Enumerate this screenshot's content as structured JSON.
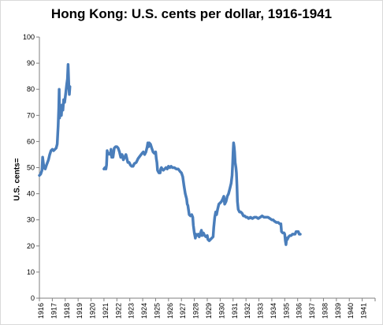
{
  "chart_data": {
    "type": "line",
    "title": "Hong Kong: U.S. cents per dollar, 1916-1941",
    "ylabel": "U.S. cents=",
    "xlabel": "",
    "ylim": [
      0,
      100
    ],
    "yticks": [
      0,
      10,
      20,
      30,
      40,
      50,
      60,
      70,
      80,
      90,
      100
    ],
    "xlim": [
      1916,
      1942
    ],
    "xticks": [
      "1916",
      "1917",
      "1918",
      "1919",
      "1920",
      "1921",
      "1922",
      "1923",
      "1924",
      "1925",
      "1926",
      "1927",
      "1928",
      "1929",
      "1930",
      "1931",
      "1932",
      "1933",
      "1934",
      "1935",
      "1936",
      "1937",
      "1938",
      "1939",
      "1940",
      "1941"
    ],
    "grid": false,
    "line_color": "#4a7ebb",
    "series": [
      {
        "name": "",
        "segments": [
          [
            [
              1916.0,
              47
            ],
            [
              1916.1,
              47.5
            ],
            [
              1916.2,
              49
            ],
            [
              1916.25,
              54
            ],
            [
              1916.35,
              50
            ],
            [
              1916.45,
              49.5
            ],
            [
              1916.55,
              51
            ],
            [
              1916.7,
              53
            ],
            [
              1916.8,
              55
            ],
            [
              1916.9,
              56.5
            ],
            [
              1917.0,
              57
            ],
            [
              1917.1,
              56.5
            ],
            [
              1917.2,
              57
            ],
            [
              1917.3,
              57.5
            ],
            [
              1917.38,
              59
            ],
            [
              1917.45,
              66
            ],
            [
              1917.5,
              73
            ],
            [
              1917.53,
              80
            ],
            [
              1917.56,
              69
            ],
            [
              1917.62,
              72
            ],
            [
              1917.7,
              70
            ],
            [
              1917.75,
              74
            ],
            [
              1917.82,
              72
            ],
            [
              1917.88,
              76
            ],
            [
              1917.95,
              75
            ],
            [
              1918.05,
              79
            ],
            [
              1918.12,
              82
            ],
            [
              1918.17,
              84
            ],
            [
              1918.22,
              89.5
            ],
            [
              1918.28,
              81
            ],
            [
              1918.32,
              78
            ],
            [
              1918.36,
              81
            ]
          ],
          [
            [
              1921.0,
              49.5
            ],
            [
              1921.08,
              50
            ],
            [
              1921.15,
              49.5
            ],
            [
              1921.2,
              51
            ],
            [
              1921.25,
              56.5
            ],
            [
              1921.3,
              55
            ],
            [
              1921.4,
              55.5
            ],
            [
              1921.5,
              55
            ],
            [
              1921.55,
              57
            ],
            [
              1921.6,
              54
            ],
            [
              1921.65,
              55
            ],
            [
              1921.7,
              54
            ],
            [
              1921.8,
              57.5
            ],
            [
              1921.9,
              58
            ],
            [
              1922.0,
              58
            ],
            [
              1922.1,
              57.5
            ],
            [
              1922.2,
              56
            ],
            [
              1922.3,
              54
            ],
            [
              1922.4,
              55
            ],
            [
              1922.5,
              53
            ],
            [
              1922.6,
              54
            ],
            [
              1922.7,
              55
            ],
            [
              1922.75,
              54
            ],
            [
              1922.85,
              52
            ],
            [
              1922.95,
              52
            ],
            [
              1923.05,
              51
            ],
            [
              1923.15,
              50.5
            ],
            [
              1923.25,
              50.5
            ],
            [
              1923.35,
              51.5
            ],
            [
              1923.5,
              52
            ],
            [
              1923.65,
              53.5
            ],
            [
              1923.8,
              54.5
            ],
            [
              1923.95,
              55.5
            ],
            [
              1924.05,
              56
            ],
            [
              1924.15,
              55
            ],
            [
              1924.25,
              56
            ],
            [
              1924.35,
              58
            ],
            [
              1924.4,
              59.5
            ],
            [
              1924.45,
              58
            ],
            [
              1924.5,
              59.5
            ],
            [
              1924.6,
              59
            ],
            [
              1924.7,
              57.5
            ],
            [
              1924.8,
              56
            ],
            [
              1924.9,
              55.5
            ],
            [
              1925.0,
              56
            ],
            [
              1925.05,
              53.5
            ],
            [
              1925.1,
              52
            ],
            [
              1925.15,
              49
            ],
            [
              1925.25,
              48
            ],
            [
              1925.35,
              48
            ],
            [
              1925.4,
              49.5
            ],
            [
              1925.45,
              50
            ],
            [
              1925.5,
              49.5
            ],
            [
              1925.6,
              49
            ],
            [
              1925.7,
              49.5
            ],
            [
              1925.8,
              50
            ],
            [
              1925.9,
              49.5
            ],
            [
              1926.0,
              50.5
            ],
            [
              1926.1,
              50
            ],
            [
              1926.2,
              50.5
            ],
            [
              1926.3,
              50
            ],
            [
              1926.45,
              50
            ],
            [
              1926.6,
              49.5
            ],
            [
              1926.75,
              49.5
            ],
            [
              1926.9,
              48.5
            ],
            [
              1927.0,
              48
            ],
            [
              1927.1,
              46.5
            ],
            [
              1927.2,
              43
            ],
            [
              1927.3,
              40
            ],
            [
              1927.4,
              38
            ],
            [
              1927.45,
              36
            ],
            [
              1927.5,
              35.5
            ],
            [
              1927.6,
              32
            ],
            [
              1927.7,
              31.5
            ],
            [
              1927.8,
              32
            ],
            [
              1927.88,
              31
            ],
            [
              1927.92,
              28
            ],
            [
              1928.0,
              25
            ],
            [
              1928.08,
              23
            ],
            [
              1928.12,
              24.5
            ],
            [
              1928.2,
              24
            ],
            [
              1928.3,
              24.5
            ],
            [
              1928.38,
              23.5
            ],
            [
              1928.45,
              24.5
            ],
            [
              1928.55,
              26
            ],
            [
              1928.6,
              24
            ],
            [
              1928.7,
              25
            ],
            [
              1928.8,
              24
            ],
            [
              1928.9,
              23.5
            ],
            [
              1929.0,
              24
            ],
            [
              1929.05,
              22.5
            ],
            [
              1929.15,
              22
            ],
            [
              1929.25,
              22.5
            ],
            [
              1929.35,
              23
            ],
            [
              1929.45,
              23.5
            ],
            [
              1929.5,
              27
            ],
            [
              1929.58,
              31
            ],
            [
              1929.65,
              33
            ],
            [
              1929.72,
              32
            ],
            [
              1929.8,
              34
            ],
            [
              1929.9,
              36
            ],
            [
              1930.0,
              36.5
            ],
            [
              1930.1,
              37
            ],
            [
              1930.2,
              38
            ],
            [
              1930.28,
              39
            ],
            [
              1930.35,
              36
            ],
            [
              1930.45,
              37
            ],
            [
              1930.55,
              39
            ],
            [
              1930.65,
              40
            ],
            [
              1930.75,
              42
            ],
            [
              1930.85,
              44
            ],
            [
              1930.92,
              47
            ],
            [
              1930.97,
              52
            ],
            [
              1931.0,
              56
            ],
            [
              1931.04,
              59.5
            ],
            [
              1931.08,
              58
            ],
            [
              1931.12,
              56
            ],
            [
              1931.16,
              52
            ],
            [
              1931.22,
              50
            ],
            [
              1931.26,
              48
            ],
            [
              1931.3,
              43
            ],
            [
              1931.34,
              37
            ],
            [
              1931.4,
              34
            ],
            [
              1931.5,
              33
            ],
            [
              1931.6,
              33
            ],
            [
              1931.7,
              32.5
            ],
            [
              1931.8,
              31.5
            ],
            [
              1931.9,
              31.5
            ],
            [
              1932.0,
              31
            ],
            [
              1932.1,
              31
            ],
            [
              1932.2,
              30.5
            ],
            [
              1932.35,
              31
            ],
            [
              1932.5,
              30.5
            ],
            [
              1932.65,
              31
            ],
            [
              1932.8,
              31
            ],
            [
              1932.95,
              30.5
            ],
            [
              1933.1,
              31
            ],
            [
              1933.25,
              31.5
            ],
            [
              1933.4,
              31
            ],
            [
              1933.55,
              31
            ],
            [
              1933.7,
              31
            ],
            [
              1933.85,
              30.5
            ],
            [
              1934.0,
              30
            ],
            [
              1934.1,
              30
            ],
            [
              1934.2,
              29.5
            ],
            [
              1934.35,
              29
            ],
            [
              1934.5,
              29
            ],
            [
              1934.6,
              28.5
            ],
            [
              1934.7,
              28.5
            ],
            [
              1934.75,
              25.5
            ],
            [
              1934.85,
              25
            ],
            [
              1934.95,
              25
            ],
            [
              1935.0,
              24.5
            ],
            [
              1935.05,
              22
            ],
            [
              1935.1,
              20.5
            ],
            [
              1935.15,
              23
            ],
            [
              1935.2,
              22.5
            ],
            [
              1935.3,
              23.5
            ],
            [
              1935.4,
              24
            ],
            [
              1935.5,
              24
            ],
            [
              1935.6,
              24.5
            ],
            [
              1935.7,
              24.5
            ],
            [
              1935.8,
              24.5
            ],
            [
              1935.88,
              25.5
            ],
            [
              1935.95,
              25.5
            ],
            [
              1936.05,
              25.5
            ],
            [
              1936.12,
              24.5
            ],
            [
              1936.2,
              24.5
            ]
          ]
        ]
      }
    ]
  }
}
